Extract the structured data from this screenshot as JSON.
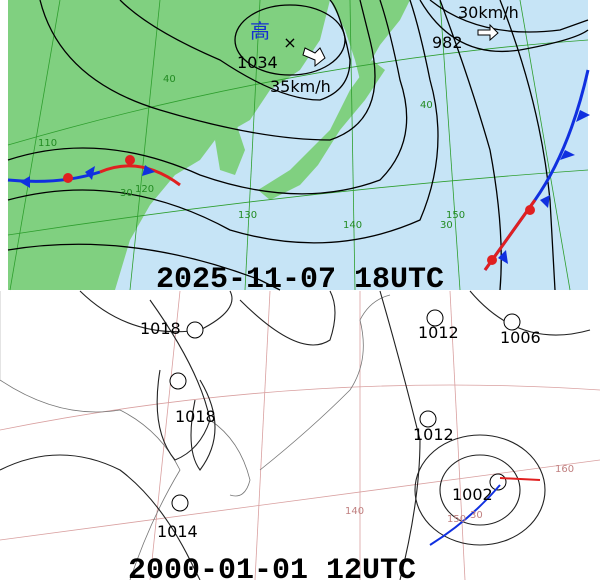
{
  "panels": [
    {
      "timestamp": "2025-11-07 18UTC",
      "high": {
        "symbol": "高",
        "pressure": "1034",
        "motion": "35km/h"
      },
      "low": {
        "pressure": "982",
        "motion": "30km/h"
      },
      "grid_labels": [
        "40",
        "40",
        "30",
        "30",
        "150",
        "140",
        "130",
        "120",
        "110"
      ]
    },
    {
      "timestamp": "2000-01-01 12UTC",
      "pressure_labels": [
        "1018",
        "1018",
        "1012",
        "1012",
        "1006",
        "1014",
        "1002"
      ],
      "grid_labels": [
        "160",
        "150",
        "140",
        "30"
      ]
    }
  ]
}
